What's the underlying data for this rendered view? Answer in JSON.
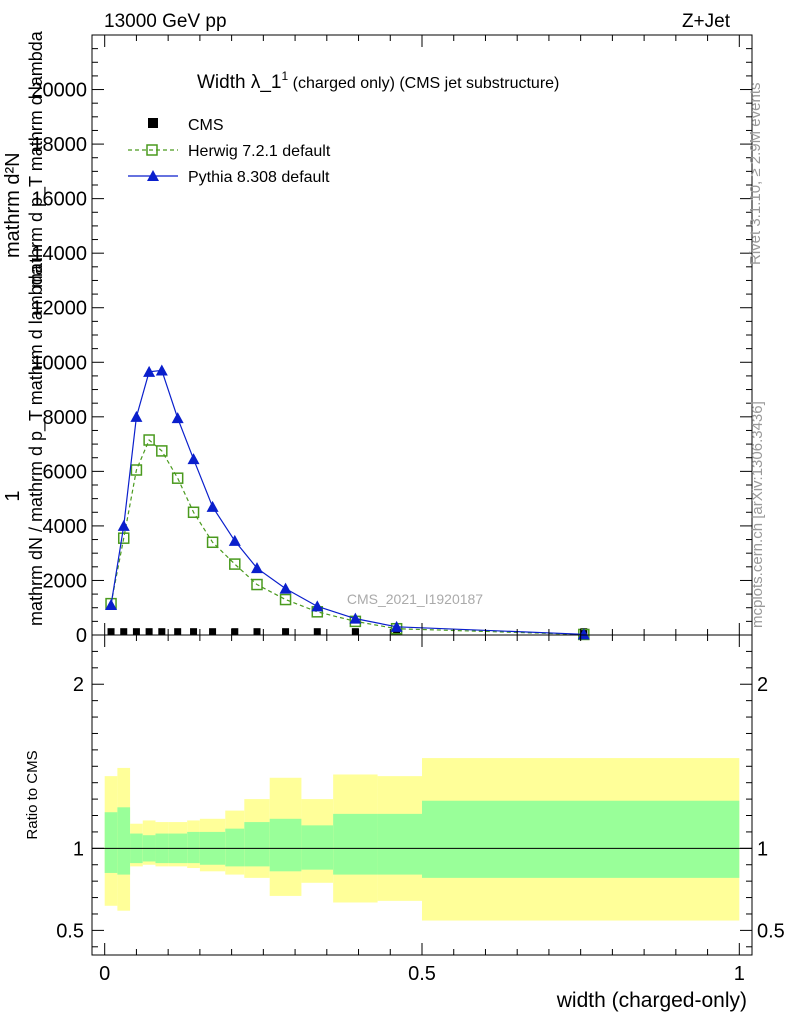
{
  "header": {
    "left": "13000 GeV pp",
    "right": "Z+Jet"
  },
  "side_labels": {
    "rivet": "Rivet 3.1.10, ≥ 2.9M events",
    "mcplots": "mcplots.cern.ch [arXiv:1306.3436]"
  },
  "watermark": "CMS_2021_I1920187",
  "colors": {
    "herwig": "#4a9a1e",
    "pythia": "#0a1fcc",
    "green_band": "#99ff99",
    "yellow_band": "#ffff99",
    "cms": "#000000"
  },
  "chart_data": [
    {
      "type": "line",
      "title_main": "Width λ_1",
      "title_sup": "1",
      "title_rest": " (charged only) (CMS jet substructure)",
      "ylabel_parts": [
        "1",
        "mathrm dN / mathrm d p_T mathrm d lambda",
        "mathrm d²N",
        "mathrm d p_T mathrm d lambda"
      ],
      "xlim": [
        -0.02,
        1.02
      ],
      "ylim": [
        0,
        22000
      ],
      "yticks": [
        0,
        2000,
        4000,
        6000,
        8000,
        10000,
        12000,
        14000,
        16000,
        18000,
        20000
      ],
      "ytick_labels": [
        "0",
        "2000",
        "4000",
        "6000",
        "8000",
        "10000",
        "12000",
        "14000",
        "16000",
        "18000",
        "20000"
      ],
      "legend": [
        {
          "name": "CMS"
        },
        {
          "name": "Herwig 7.2.1 default"
        },
        {
          "name": "Pythia 8.308 default"
        }
      ],
      "series": [
        {
          "name": "CMS",
          "x": [
            0.01,
            0.03,
            0.05,
            0.07,
            0.09,
            0.115,
            0.14,
            0.17,
            0.205,
            0.24,
            0.285,
            0.335,
            0.395,
            0.46,
            0.755
          ],
          "y": [
            30,
            30,
            30,
            30,
            30,
            30,
            30,
            30,
            30,
            30,
            30,
            30,
            30,
            30,
            30
          ]
        },
        {
          "name": "Herwig 7.2.1 default",
          "x": [
            0.01,
            0.03,
            0.05,
            0.07,
            0.09,
            0.115,
            0.14,
            0.17,
            0.205,
            0.24,
            0.285,
            0.335,
            0.395,
            0.46,
            0.755
          ],
          "y": [
            1150,
            3550,
            6050,
            7150,
            6750,
            5750,
            4500,
            3400,
            2600,
            1850,
            1300,
            850,
            500,
            230,
            20
          ]
        },
        {
          "name": "Pythia 8.308 default",
          "x": [
            0.01,
            0.03,
            0.05,
            0.07,
            0.09,
            0.115,
            0.14,
            0.17,
            0.205,
            0.24,
            0.285,
            0.335,
            0.395,
            0.46,
            0.755
          ],
          "y": [
            1100,
            4000,
            8000,
            9650,
            9700,
            7950,
            6450,
            4700,
            3450,
            2450,
            1700,
            1050,
            600,
            300,
            25
          ]
        }
      ]
    },
    {
      "type": "area",
      "ylabel": "Ratio to CMS",
      "xlabel": "width (charged-only)",
      "xlim": [
        -0.02,
        1.02
      ],
      "ylim": [
        0.35,
        2.3
      ],
      "yticks": [
        0.5,
        1,
        2
      ],
      "ytick_labels": [
        "0.5",
        "1",
        "2"
      ],
      "xticks": [
        0,
        0.5,
        1
      ],
      "xtick_labels": [
        "0",
        "0.5",
        "1"
      ],
      "bins": [
        0,
        0.02,
        0.04,
        0.06,
        0.08,
        0.1,
        0.13,
        0.15,
        0.19,
        0.22,
        0.26,
        0.31,
        0.36,
        0.43,
        0.5,
        1.0
      ],
      "green_low": [
        0.85,
        0.84,
        0.91,
        0.92,
        0.91,
        0.91,
        0.91,
        0.9,
        0.89,
        0.89,
        0.86,
        0.87,
        0.84,
        0.84,
        0.82
      ],
      "green_high": [
        1.22,
        1.25,
        1.09,
        1.08,
        1.09,
        1.09,
        1.1,
        1.1,
        1.12,
        1.16,
        1.18,
        1.14,
        1.21,
        1.21,
        1.29
      ],
      "yellow_low": [
        0.65,
        0.62,
        0.89,
        0.9,
        0.89,
        0.89,
        0.88,
        0.86,
        0.84,
        0.82,
        0.71,
        0.79,
        0.67,
        0.68,
        0.56
      ],
      "yellow_high": [
        1.44,
        1.49,
        1.15,
        1.17,
        1.16,
        1.16,
        1.17,
        1.18,
        1.23,
        1.3,
        1.43,
        1.3,
        1.45,
        1.44,
        1.55
      ]
    }
  ]
}
